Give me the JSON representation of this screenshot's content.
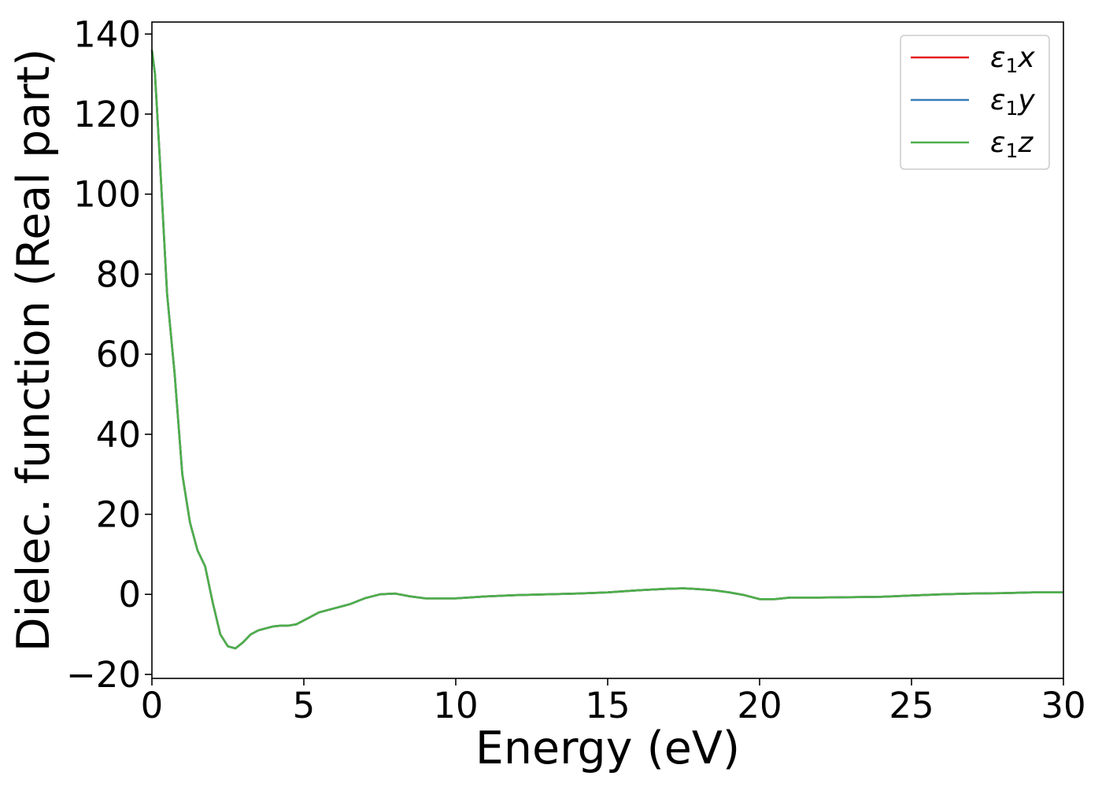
{
  "chart_data": {
    "type": "line",
    "title": "",
    "xlabel": "Energy (eV)",
    "ylabel": "Dielec. function (Real part)",
    "xlim": [
      0,
      30
    ],
    "ylim": [
      -21,
      143
    ],
    "xticks": [
      0,
      5,
      10,
      15,
      20,
      25,
      30
    ],
    "xtick_labels": [
      "0",
      "5",
      "10",
      "15",
      "20",
      "25",
      "30"
    ],
    "yticks": [
      -20,
      0,
      20,
      40,
      60,
      80,
      100,
      120,
      140
    ],
    "ytick_labels": [
      "−20",
      "0",
      "20",
      "40",
      "60",
      "80",
      "100",
      "120",
      "140"
    ],
    "grid": false,
    "legend": "top-right",
    "x": [
      0,
      0.1,
      0.25,
      0.5,
      0.75,
      1.0,
      1.25,
      1.5,
      1.75,
      2.0,
      2.25,
      2.5,
      2.75,
      3.0,
      3.25,
      3.5,
      3.75,
      4.0,
      4.25,
      4.5,
      4.75,
      5.0,
      5.5,
      6.0,
      6.5,
      7.0,
      7.5,
      8.0,
      8.5,
      9.0,
      9.5,
      10.0,
      11.0,
      12.0,
      13.0,
      14.0,
      15.0,
      16.0,
      17.0,
      17.5,
      18.0,
      18.5,
      19.0,
      19.5,
      20.0,
      20.5,
      21.0,
      22.0,
      23.0,
      24.0,
      25.0,
      26.0,
      27.0,
      28.0,
      29.0,
      30.0
    ],
    "series": [
      {
        "name": "ε₁x",
        "label_main": "ε",
        "label_sub": "1",
        "label_axis": "x",
        "color": "#e41a1c",
        "values": [
          136,
          130,
          110,
          75,
          55,
          30,
          18,
          11,
          7,
          -2,
          -10,
          -13,
          -13.5,
          -12,
          -10,
          -9,
          -8.5,
          -8,
          -7.8,
          -7.8,
          -7.5,
          -6.5,
          -4.5,
          -3.5,
          -2.5,
          -1,
          0,
          0.2,
          -0.5,
          -1,
          -1,
          -1,
          -0.5,
          -0.2,
          0,
          0.2,
          0.5,
          1,
          1.4,
          1.5,
          1.3,
          1,
          0.5,
          -0.2,
          -1.2,
          -1.2,
          -0.8,
          -0.8,
          -0.7,
          -0.6,
          -0.3,
          0,
          0.2,
          0.3,
          0.5,
          0.5
        ]
      },
      {
        "name": "ε₁y",
        "label_main": "ε",
        "label_sub": "1",
        "label_axis": "y",
        "color": "#377eb8",
        "values": [
          136,
          130,
          110,
          75,
          55,
          30,
          18,
          11,
          7,
          -2,
          -10,
          -13,
          -13.5,
          -12,
          -10,
          -9,
          -8.5,
          -8,
          -7.8,
          -7.8,
          -7.5,
          -6.5,
          -4.5,
          -3.5,
          -2.5,
          -1,
          0,
          0.2,
          -0.5,
          -1,
          -1,
          -1,
          -0.5,
          -0.2,
          0,
          0.2,
          0.5,
          1,
          1.4,
          1.5,
          1.3,
          1,
          0.5,
          -0.2,
          -1.2,
          -1.2,
          -0.8,
          -0.8,
          -0.7,
          -0.6,
          -0.3,
          0,
          0.2,
          0.3,
          0.5,
          0.5
        ]
      },
      {
        "name": "ε₁z",
        "label_main": "ε",
        "label_sub": "1",
        "label_axis": "z",
        "color": "#4daf4a",
        "values": [
          136,
          130,
          110,
          75,
          55,
          30,
          18,
          11,
          7,
          -2,
          -10,
          -13,
          -13.5,
          -12,
          -10,
          -9,
          -8.5,
          -8,
          -7.8,
          -7.8,
          -7.5,
          -6.5,
          -4.5,
          -3.5,
          -2.5,
          -1,
          0,
          0.2,
          -0.5,
          -1,
          -1,
          -1,
          -0.5,
          -0.2,
          0,
          0.2,
          0.5,
          1,
          1.4,
          1.5,
          1.3,
          1,
          0.5,
          -0.2,
          -1.2,
          -1.2,
          -0.8,
          -0.8,
          -0.7,
          -0.6,
          -0.3,
          0,
          0.2,
          0.3,
          0.5,
          0.5
        ]
      }
    ]
  }
}
